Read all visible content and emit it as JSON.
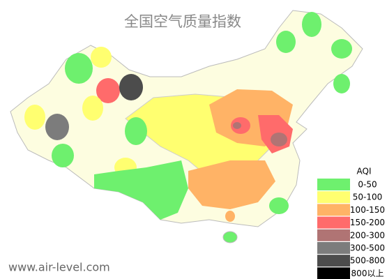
{
  "title": "全国空气质量指数",
  "legend": {
    "title": "AQI",
    "items": [
      {
        "label": "0-50",
        "color": "#6ef06e"
      },
      {
        "label": "50-100",
        "color": "#ffff70"
      },
      {
        "label": "100-150",
        "color": "#ffb366"
      },
      {
        "label": "150-200",
        "color": "#ff6b6b"
      },
      {
        "label": "200-300",
        "color": "#b07474"
      },
      {
        "label": "300-500",
        "color": "#7c7c7c"
      },
      {
        "label": "500-800",
        "color": "#4c4c4c"
      },
      {
        "label": "800以上",
        "color": "#000000"
      }
    ]
  },
  "watermark": "www.air-level.com"
}
